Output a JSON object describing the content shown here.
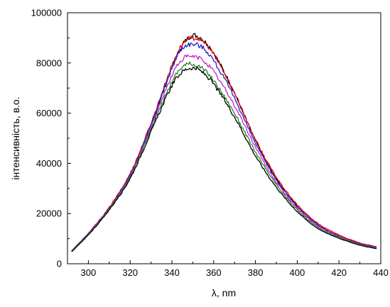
{
  "chart_data": {
    "type": "line",
    "xlabel": "λ, nm",
    "ylabel": "інтенсивність, в.о.",
    "xlim": [
      290,
      440
    ],
    "ylim": [
      0,
      100000
    ],
    "x_ticks": [
      300,
      320,
      340,
      360,
      380,
      400,
      420,
      440
    ],
    "y_ticks": [
      0,
      20000,
      40000,
      60000,
      80000,
      100000
    ],
    "x_tick_labels": [
      "300",
      "320",
      "340",
      "360",
      "380",
      "400",
      "420",
      "440"
    ],
    "y_tick_labels": [
      "0",
      "20000",
      "40000",
      "60000",
      "80000",
      "100000"
    ],
    "grid": false,
    "legend": "none",
    "x": [
      292,
      300,
      310,
      320,
      330,
      340,
      345,
      350,
      355,
      360,
      370,
      380,
      390,
      400,
      410,
      420,
      430,
      438
    ],
    "series": [
      {
        "color": "#000000",
        "values": [
          5000,
          12000,
          22000,
          35000,
          55000,
          78000,
          87000,
          91000,
          89000,
          84000,
          68000,
          49000,
          34000,
          23000,
          15500,
          11000,
          8000,
          6500
        ]
      },
      {
        "color": "#e60000",
        "values": [
          5200,
          12200,
          22500,
          36000,
          56000,
          79000,
          87500,
          90000,
          88500,
          83500,
          68000,
          49500,
          34500,
          23500,
          16000,
          11500,
          8300,
          6800
        ]
      },
      {
        "color": "#2222cc",
        "values": [
          5100,
          12100,
          22200,
          35500,
          55500,
          78000,
          86000,
          87500,
          86000,
          81000,
          66000,
          48000,
          33500,
          22800,
          15500,
          11000,
          8000,
          6600
        ]
      },
      {
        "color": "#d020d0",
        "values": [
          5000,
          12000,
          22000,
          35000,
          54500,
          75000,
          81500,
          82500,
          81000,
          76500,
          63000,
          46500,
          32500,
          22200,
          15000,
          10800,
          7800,
          6400
        ]
      },
      {
        "color": "#1f8a1f",
        "values": [
          5000,
          11800,
          21800,
          34500,
          53500,
          72500,
          78500,
          79500,
          77500,
          73000,
          60000,
          44500,
          31500,
          21500,
          14500,
          10500,
          7600,
          6200
        ]
      },
      {
        "color": "#000000",
        "values": [
          4800,
          11500,
          21500,
          34000,
          52500,
          71000,
          76500,
          78000,
          76000,
          71500,
          58500,
          43000,
          30500,
          20800,
          14000,
          10200,
          7400,
          6000
        ]
      }
    ]
  }
}
